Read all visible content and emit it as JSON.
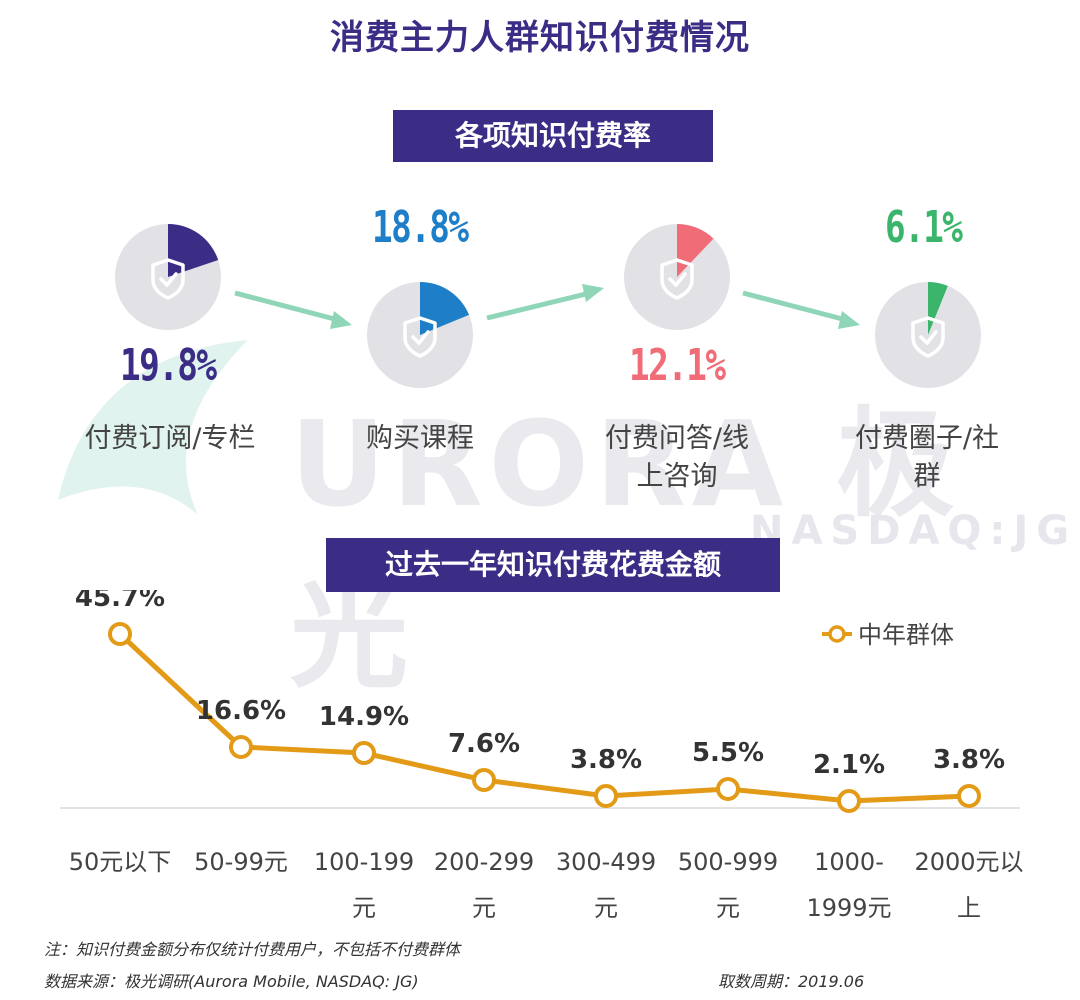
{
  "title": "消费主力人群知识付费情况",
  "section1": {
    "banner": "各项知识付费率",
    "items": [
      {
        "label": "付费订阅/专栏",
        "value": 19.8,
        "value_text": "19.8%",
        "color": "#3b2c86"
      },
      {
        "label": "购买课程",
        "value": 18.8,
        "value_text": "18.8%",
        "color": "#1e7fc8"
      },
      {
        "label": "付费问答/线上咨询",
        "value": 12.1,
        "value_text": "12.1%",
        "color": "#f06d78"
      },
      {
        "label": "付费圈子/社群",
        "value": 6.1,
        "value_text": "6.1%",
        "color": "#3bb56b"
      }
    ]
  },
  "watermark": {
    "text": "URORA 极光",
    "sub": "NASDAQ:JG"
  },
  "section2": {
    "banner": "过去一年知识付费花费金额"
  },
  "chart_data": {
    "type": "line",
    "categories": [
      "50元以下",
      "50-99元",
      "100-199元",
      "200-299元",
      "300-499元",
      "500-999元",
      "1000-1999元",
      "2000元以上"
    ],
    "category_lines": [
      [
        "50元以下"
      ],
      [
        "50-99元"
      ],
      [
        "100-199",
        "元"
      ],
      [
        "200-299",
        "元"
      ],
      [
        "300-499",
        "元"
      ],
      [
        "500-999",
        "元"
      ],
      [
        "1000-",
        "1999元"
      ],
      [
        "2000元以",
        "上"
      ]
    ],
    "series": [
      {
        "name": "中年群体",
        "values": [
          45.7,
          16.6,
          14.9,
          7.6,
          3.8,
          5.5,
          2.1,
          3.8
        ],
        "color": "#e29a17"
      }
    ],
    "data_labels": [
      "45.7%",
      "16.6%",
      "14.9%",
      "7.6%",
      "3.8%",
      "5.5%",
      "2.1%",
      "3.8%"
    ],
    "legend": "top-right",
    "ylim": [
      0,
      50
    ]
  },
  "footer": {
    "note": "注：知识付费金额分布仅统计付费用户，不包括不付费群体",
    "source": "数据来源：极光调研(Aurora Mobile, NASDAQ: JG)",
    "period": "取数周期：2019.06"
  }
}
